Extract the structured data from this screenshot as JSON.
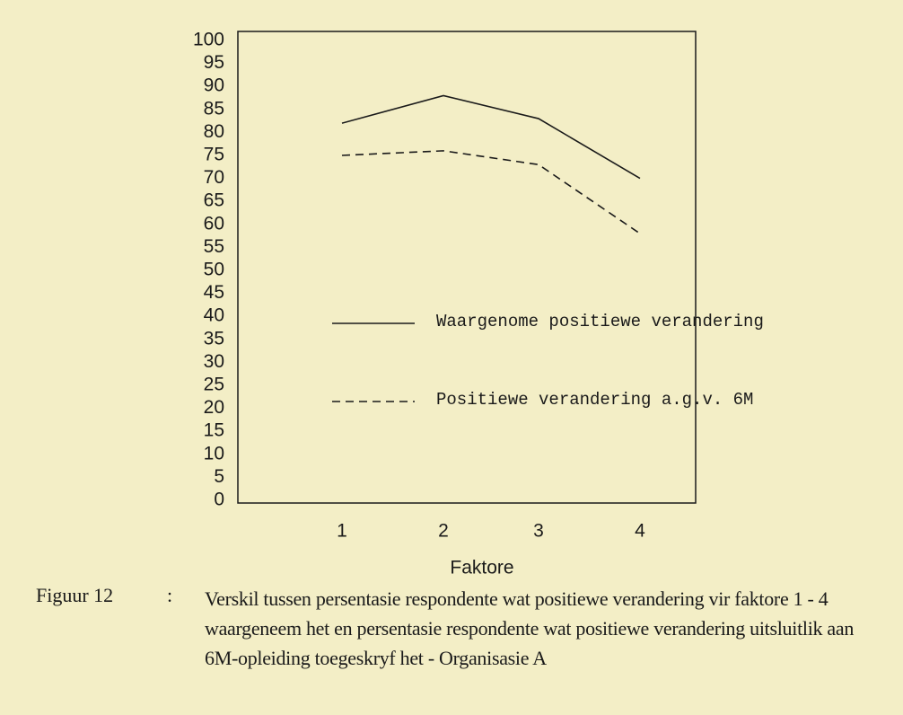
{
  "chart_data": {
    "type": "line",
    "xlabel": "Faktore",
    "categories": [
      "1",
      "2",
      "3",
      "4"
    ],
    "series": [
      {
        "name": "Waargenome positiewe verandering",
        "color": "#1a1a1a",
        "line_style": "solid",
        "values": [
          82,
          88,
          83,
          70
        ]
      },
      {
        "name": "Positiewe verandering a.g.v. 6M",
        "color": "#1a1a1a",
        "line_style": "dashed",
        "values": [
          75,
          76,
          73,
          58
        ]
      }
    ],
    "ylim": [
      0,
      100
    ],
    "yticks": [
      0,
      5,
      10,
      15,
      20,
      25,
      30,
      35,
      40,
      45,
      50,
      55,
      60,
      65,
      70,
      75,
      80,
      85,
      90,
      95,
      100
    ],
    "grid": false,
    "caption_label": "Figuur 12",
    "caption_separator": ":",
    "caption": "Verskil tussen persentasie respondente wat positiewe verandering vir faktore 1 - 4 waargeneem het en persentasie respondente wat positiewe verandering uitsluitlik aan 6M-opleiding toegeskryf het  -  Organisasie A"
  }
}
